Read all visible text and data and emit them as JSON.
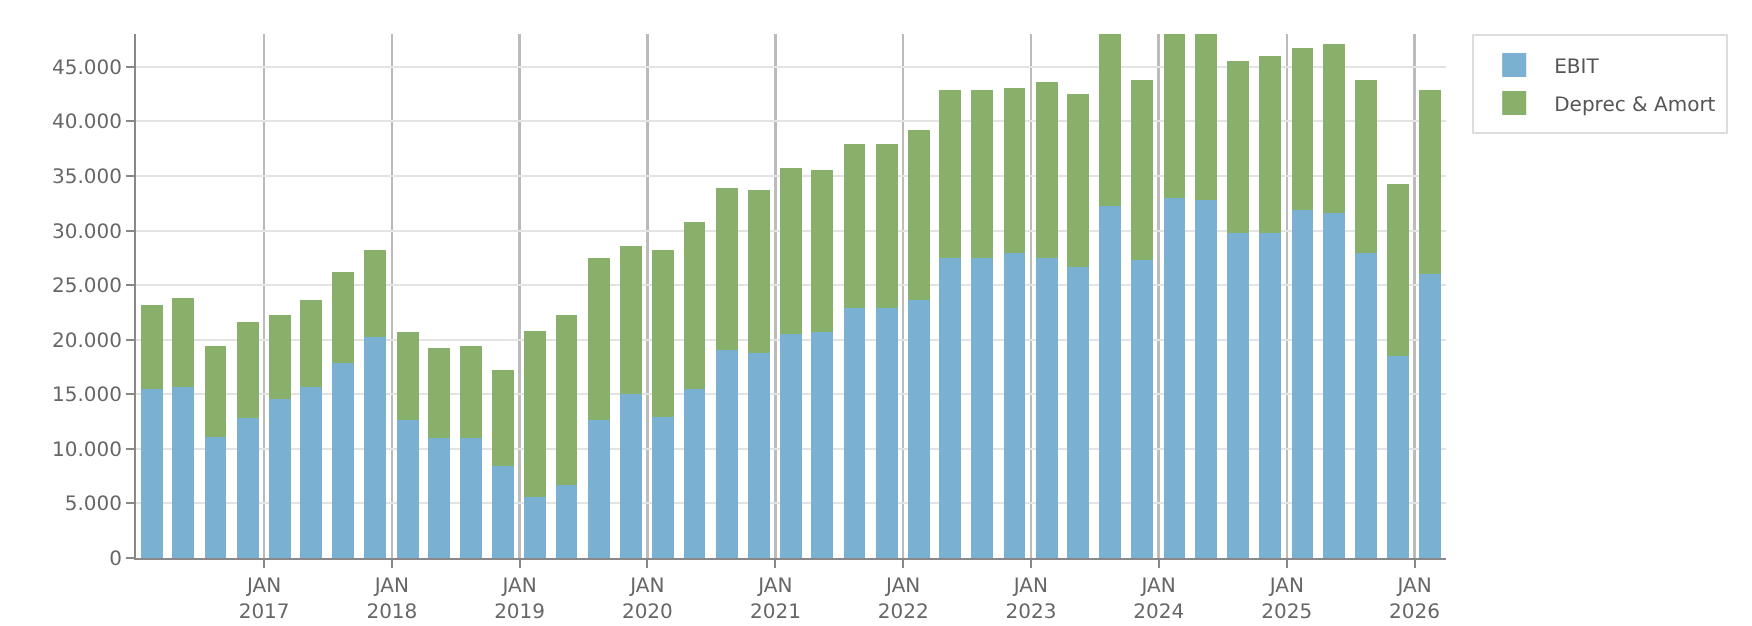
{
  "chart_data": {
    "type": "bar",
    "stacked": true,
    "x": [
      "2016-02-15",
      "2016-05-15",
      "2016-08-15",
      "2016-11-15",
      "2017-02-15",
      "2017-05-15",
      "2017-08-15",
      "2017-11-15",
      "2018-02-15",
      "2018-05-15",
      "2018-08-15",
      "2018-11-15",
      "2019-02-15",
      "2019-05-15",
      "2019-08-15",
      "2019-11-15",
      "2020-02-15",
      "2020-05-15",
      "2020-08-15",
      "2020-11-15",
      "2021-02-15",
      "2021-05-15",
      "2021-08-15",
      "2021-11-15",
      "2022-02-15",
      "2022-05-15",
      "2022-08-15",
      "2022-11-15",
      "2023-02-15",
      "2023-05-15",
      "2023-08-15",
      "2023-11-15",
      "2024-02-15",
      "2024-05-15",
      "2024-08-15",
      "2024-11-15",
      "2025-02-15",
      "2025-05-15",
      "2025-08-15",
      "2025-11-15",
      "2026-02-15"
    ],
    "series": [
      {
        "name": "EBIT",
        "color": "#7ab0d2",
        "values": [
          15500,
          15700,
          11100,
          12800,
          14600,
          15700,
          17900,
          20200,
          12600,
          11000,
          11000,
          8400,
          5600,
          6700,
          12600,
          15000,
          12900,
          15500,
          19100,
          18800,
          20500,
          20700,
          22900,
          22900,
          23600,
          27500,
          27500,
          27900,
          27500,
          26700,
          32200,
          27300,
          33000,
          32800,
          29800,
          29800,
          31900,
          31600,
          27900,
          18500,
          26000
        ]
      },
      {
        "name": "Deprec & Amort",
        "color": "#88b06a",
        "values": [
          7700,
          8100,
          8300,
          8800,
          7700,
          7900,
          8300,
          8000,
          8100,
          8200,
          8400,
          8800,
          15200,
          15600,
          14900,
          13600,
          15300,
          15300,
          14800,
          14900,
          15200,
          14800,
          15000,
          15000,
          15600,
          15400,
          15400,
          15200,
          16100,
          15800,
          15800,
          16500,
          15000,
          15200,
          15700,
          16200,
          14800,
          15500,
          15900,
          15800,
          16900
        ]
      }
    ],
    "ylim": [
      0,
      48000
    ],
    "yticks": [
      0,
      {
        "value": 5000,
        "label": "5.000"
      },
      {
        "value": 10000,
        "label": "10.000"
      },
      {
        "value": 15000,
        "label": "15.000"
      },
      {
        "value": 20000,
        "label": "20.000"
      },
      {
        "value": 25000,
        "label": "25.000"
      },
      {
        "value": 30000,
        "label": "30.000"
      },
      {
        "value": 35000,
        "label": "35.000"
      },
      {
        "value": 40000,
        "label": "40.000"
      },
      {
        "value": 45000,
        "label": "45.000"
      }
    ],
    "xlim": [
      "2016-01-01",
      "2026-04-01"
    ],
    "xticks": [
      {
        "value": "2017-01-01",
        "label": "JAN\n2017"
      },
      {
        "value": "2018-01-01",
        "label": "JAN\n2018"
      },
      {
        "value": "2019-01-01",
        "label": "JAN\n2019"
      },
      {
        "value": "2020-01-01",
        "label": "JAN\n2020"
      },
      {
        "value": "2021-01-01",
        "label": "JAN\n2021"
      },
      {
        "value": "2022-01-01",
        "label": "JAN\n2022"
      },
      {
        "value": "2023-01-01",
        "label": "JAN\n2023"
      },
      {
        "value": "2024-01-01",
        "label": "JAN\n2024"
      },
      {
        "value": "2025-01-01",
        "label": "JAN\n2025"
      },
      {
        "value": "2026-01-01",
        "label": "JAN\n2026"
      }
    ],
    "grid": true,
    "legend": "top right"
  }
}
